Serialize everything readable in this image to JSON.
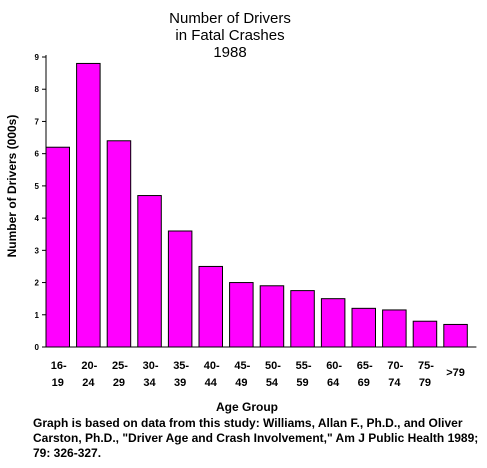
{
  "chart_data": {
    "type": "bar",
    "title_lines": [
      "Number of Drivers",
      "in Fatal Crashes",
      "1988"
    ],
    "xlabel": "Age Group",
    "ylabel": "Number of Drivers (000s)",
    "ylim": [
      0,
      9
    ],
    "yticks": [
      "0",
      "1",
      "2",
      "3",
      "4",
      "5",
      "6",
      "7",
      "8",
      "9"
    ],
    "categories": [
      {
        "top": "16-",
        "bottom": "19"
      },
      {
        "top": "20-",
        "bottom": "24"
      },
      {
        "top": "25-",
        "bottom": "29"
      },
      {
        "top": "30-",
        "bottom": "34"
      },
      {
        "top": "35-",
        "bottom": "39"
      },
      {
        "top": "40-",
        "bottom": "44"
      },
      {
        "top": "45-",
        "bottom": "49"
      },
      {
        "top": "50-",
        "bottom": "54"
      },
      {
        "top": "55-",
        "bottom": "59"
      },
      {
        "top": "60-",
        "bottom": "64"
      },
      {
        "top": "65-",
        "bottom": "69"
      },
      {
        "top": "70-",
        "bottom": "74"
      },
      {
        "top": "75-",
        "bottom": "79"
      },
      {
        "top": ">79",
        "bottom": ""
      }
    ],
    "values": [
      6.2,
      8.8,
      6.4,
      4.7,
      3.6,
      2.5,
      2.0,
      1.9,
      1.75,
      1.5,
      1.2,
      1.15,
      0.8,
      0.7
    ],
    "bar_color": "#ff00ff",
    "grid": false,
    "legend": "none"
  },
  "note": "Graph is based on data from this study:  Williams, Allan F., Ph.D., and Oliver Carston, Ph.D., \"Driver Age and Crash Involvement,\" Am J Public Health 1989; 79: 326-327."
}
